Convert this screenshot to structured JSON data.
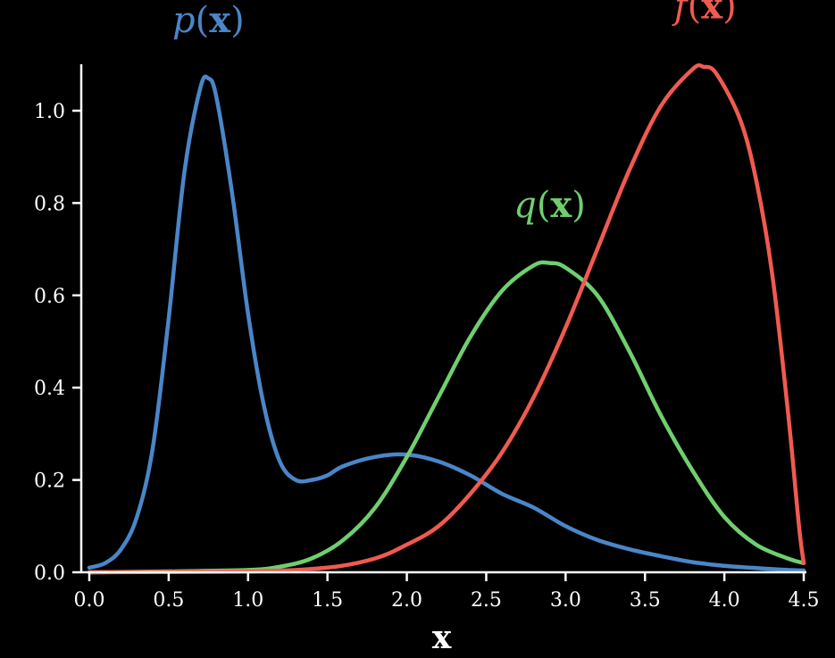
{
  "chart_data": {
    "type": "line",
    "xlabel": "x",
    "ylabel": "",
    "xlim": [
      0,
      4.5
    ],
    "ylim": [
      0,
      1.1
    ],
    "grid": false,
    "legend": "none",
    "x_ticks": [
      "0.0",
      "0.5",
      "1.0",
      "1.5",
      "2.0",
      "2.5",
      "3.0",
      "3.5",
      "4.0",
      "4.5"
    ],
    "y_ticks": [
      "0.0",
      "0.2",
      "0.4",
      "0.6",
      "0.8",
      "1.0"
    ],
    "series": [
      {
        "name": "p(x)",
        "color": "#4a86c8",
        "x": [
          0.0,
          0.1,
          0.2,
          0.3,
          0.4,
          0.5,
          0.6,
          0.7,
          0.75,
          0.8,
          0.9,
          1.0,
          1.1,
          1.2,
          1.3,
          1.4,
          1.5,
          1.6,
          1.8,
          2.0,
          2.2,
          2.4,
          2.6,
          2.8,
          3.0,
          3.2,
          3.4,
          3.6,
          3.8,
          4.0,
          4.2,
          4.4,
          4.5
        ],
        "y": [
          0.01,
          0.02,
          0.05,
          0.12,
          0.27,
          0.55,
          0.87,
          1.05,
          1.07,
          1.03,
          0.82,
          0.56,
          0.36,
          0.24,
          0.2,
          0.2,
          0.21,
          0.23,
          0.25,
          0.255,
          0.24,
          0.21,
          0.17,
          0.14,
          0.1,
          0.07,
          0.05,
          0.035,
          0.022,
          0.014,
          0.009,
          0.005,
          0.004
        ]
      },
      {
        "name": "q(x)",
        "color": "#6fcf6f",
        "x": [
          0.0,
          0.5,
          1.0,
          1.2,
          1.4,
          1.6,
          1.8,
          2.0,
          2.2,
          2.4,
          2.6,
          2.8,
          2.9,
          3.0,
          3.2,
          3.4,
          3.6,
          3.8,
          4.0,
          4.2,
          4.4,
          4.5
        ],
        "y": [
          0.0,
          0.002,
          0.005,
          0.012,
          0.03,
          0.07,
          0.14,
          0.25,
          0.38,
          0.51,
          0.61,
          0.665,
          0.67,
          0.66,
          0.6,
          0.48,
          0.34,
          0.22,
          0.12,
          0.06,
          0.03,
          0.02
        ]
      },
      {
        "name": "f(x)",
        "color": "#f05a50",
        "x": [
          0.0,
          1.0,
          1.5,
          1.8,
          2.0,
          2.2,
          2.4,
          2.6,
          2.8,
          3.0,
          3.2,
          3.4,
          3.6,
          3.8,
          3.87,
          3.95,
          4.1,
          4.2,
          4.3,
          4.4,
          4.47,
          4.5
        ],
        "y": [
          0.0,
          0.002,
          0.01,
          0.03,
          0.06,
          0.1,
          0.17,
          0.26,
          0.38,
          0.53,
          0.7,
          0.87,
          1.01,
          1.09,
          1.095,
          1.08,
          0.98,
          0.85,
          0.65,
          0.35,
          0.1,
          0.02
        ]
      }
    ],
    "annotations": [
      {
        "series": "p(x)",
        "fn": "p",
        "arg": "x",
        "at_x": 0.75,
        "at_y": 1.17
      },
      {
        "series": "q(x)",
        "fn": "q",
        "arg": "x",
        "at_x": 2.9,
        "at_y": 0.77
      },
      {
        "series": "f(x)",
        "fn": "f",
        "arg": "x",
        "at_x": 3.88,
        "at_y": 1.2
      }
    ]
  }
}
